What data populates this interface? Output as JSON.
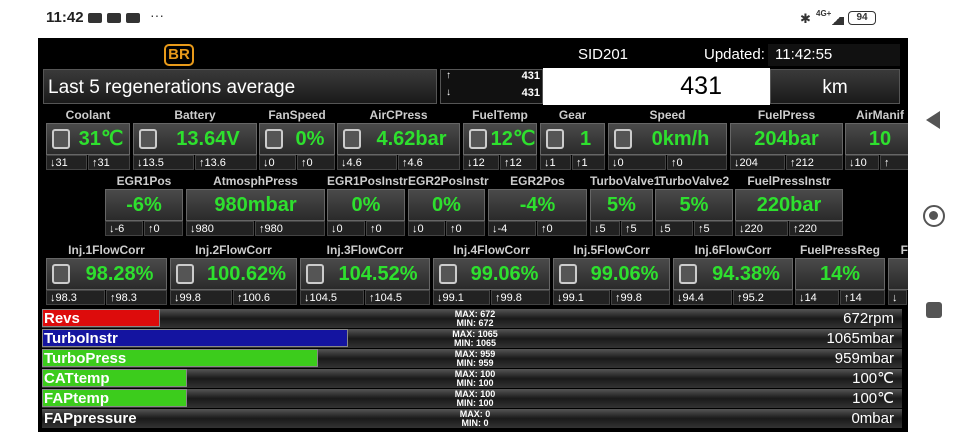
{
  "status_bar": {
    "time": "11:42",
    "network": "4G+",
    "battery": "94"
  },
  "header": {
    "badge": "BR",
    "ecu": "SID201",
    "updated_label": "Updated:",
    "updated_time": "11:42:55"
  },
  "summary": {
    "label": "Last 5 regenerations average",
    "max_arrow": "↑",
    "max": "431",
    "min_arrow": "↓",
    "min": "431",
    "value": "431",
    "unit": "km"
  },
  "gauge_rows": [
    [
      {
        "label": "Coolant",
        "value": "31℃",
        "min": "↓31",
        "max": "↑31"
      },
      {
        "label": "Battery",
        "value": "13.64V",
        "min": "↓13.5",
        "max": "↑13.6"
      },
      {
        "label": "FanSpeed",
        "value": "0%",
        "min": "↓0",
        "max": "↑0"
      },
      {
        "label": "AirCPress",
        "value": "4.62bar",
        "min": "↓4.6",
        "max": "↑4.6"
      },
      {
        "label": "FuelTemp",
        "value": "12℃",
        "min": "↓12",
        "max": "↑12"
      },
      {
        "label": "Gear",
        "value": "1",
        "min": "↓1",
        "max": "↑1"
      },
      {
        "label": "Speed",
        "value": "0km/h",
        "min": "↓0",
        "max": "↑0"
      },
      {
        "label": "FuelPress",
        "value": "204bar",
        "min": "↓204",
        "max": "↑212"
      },
      {
        "label": "AirManif",
        "value": "10",
        "min": "↓10",
        "max": "↑"
      }
    ],
    [
      {
        "label": "EGR1Pos",
        "value": "-6%",
        "min": "↓-6",
        "max": "↑0"
      },
      {
        "label": "AtmosphPress",
        "value": "980mbar",
        "min": "↓980",
        "max": "↑980"
      },
      {
        "label": "EGR1PosInstr",
        "value": "0%",
        "min": "↓0",
        "max": "↑0"
      },
      {
        "label": "EGR2PosInstr",
        "value": "0%",
        "min": "↓0",
        "max": "↑0"
      },
      {
        "label": "EGR2Pos",
        "value": "-4%",
        "min": "↓-4",
        "max": "↑0"
      },
      {
        "label": "TurboValve1",
        "value": "5%",
        "min": "↓5",
        "max": "↑5"
      },
      {
        "label": "TurboValve2",
        "value": "5%",
        "min": "↓5",
        "max": "↑5"
      },
      {
        "label": "FuelPressInstr",
        "value": "220bar",
        "min": "↓220",
        "max": "↑220"
      }
    ],
    [
      {
        "label": "Inj.1FlowCorr",
        "value": "98.28%",
        "min": "↓98.3",
        "max": "↑98.3"
      },
      {
        "label": "Inj.2FlowCorr",
        "value": "100.62%",
        "min": "↓99.8",
        "max": "↑100.6"
      },
      {
        "label": "Inj.3FlowCorr",
        "value": "104.52%",
        "min": "↓104.5",
        "max": "↑104.5"
      },
      {
        "label": "Inj.4FlowCorr",
        "value": "99.06%",
        "min": "↓99.1",
        "max": "↑99.8"
      },
      {
        "label": "Inj.5FlowCorr",
        "value": "99.06%",
        "min": "↓99.1",
        "max": "↑99.8"
      },
      {
        "label": "Inj.6FlowCorr",
        "value": "94.38%",
        "min": "↓94.4",
        "max": "↑95.2"
      },
      {
        "label": "FuelPressReg",
        "value": "14%",
        "min": "↓14",
        "max": "↑14"
      },
      {
        "label": "Fu",
        "min": "↓"
      }
    ]
  ],
  "bars": [
    {
      "name": "Revs",
      "max_label": "MAX: 672",
      "min_label": "MIN: 672",
      "value": "672rpm"
    },
    {
      "name": "TurboInstr",
      "max_label": "MAX: 1065",
      "min_label": "MIN: 1065",
      "value": "1065mbar"
    },
    {
      "name": "TurboPress",
      "max_label": "MAX: 959",
      "min_label": "MIN: 959",
      "value": "959mbar"
    },
    {
      "name": "CATtemp",
      "max_label": "MAX: 100",
      "min_label": "MIN: 100",
      "value": "100℃"
    },
    {
      "name": "FAPtemp",
      "max_label": "MAX: 100",
      "min_label": "MIN: 100",
      "value": "100℃"
    },
    {
      "name": "FAPpressure",
      "max_label": "MAX: 0",
      "min_label": "MIN: 0",
      "value": "0mbar"
    }
  ]
}
